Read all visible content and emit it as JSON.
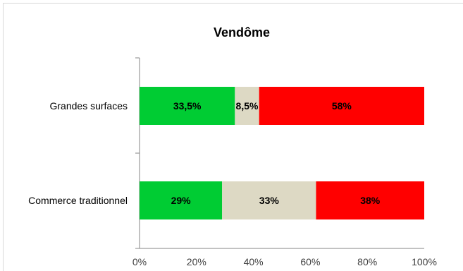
{
  "chart_data": {
    "type": "bar",
    "orientation": "horizontal",
    "stacked": true,
    "percent_stacked": true,
    "title": "Vendôme",
    "categories": [
      "Grandes surfaces",
      "Commerce traditionnel"
    ],
    "series": [
      {
        "color": "#00cc33",
        "values": [
          33.5,
          29
        ],
        "labels": [
          "33,5%",
          "29%"
        ]
      },
      {
        "color": "#ddd9c4",
        "values": [
          8.5,
          33
        ],
        "labels": [
          "8,5%",
          "33%"
        ]
      },
      {
        "color": "#ff0000",
        "values": [
          58,
          38
        ],
        "labels": [
          "58%",
          "38%"
        ]
      }
    ],
    "x_ticks": [
      "0%",
      "20%",
      "40%",
      "60%",
      "80%",
      "100%"
    ],
    "xlim": [
      0,
      100
    ],
    "grid": false,
    "legend": "none"
  }
}
